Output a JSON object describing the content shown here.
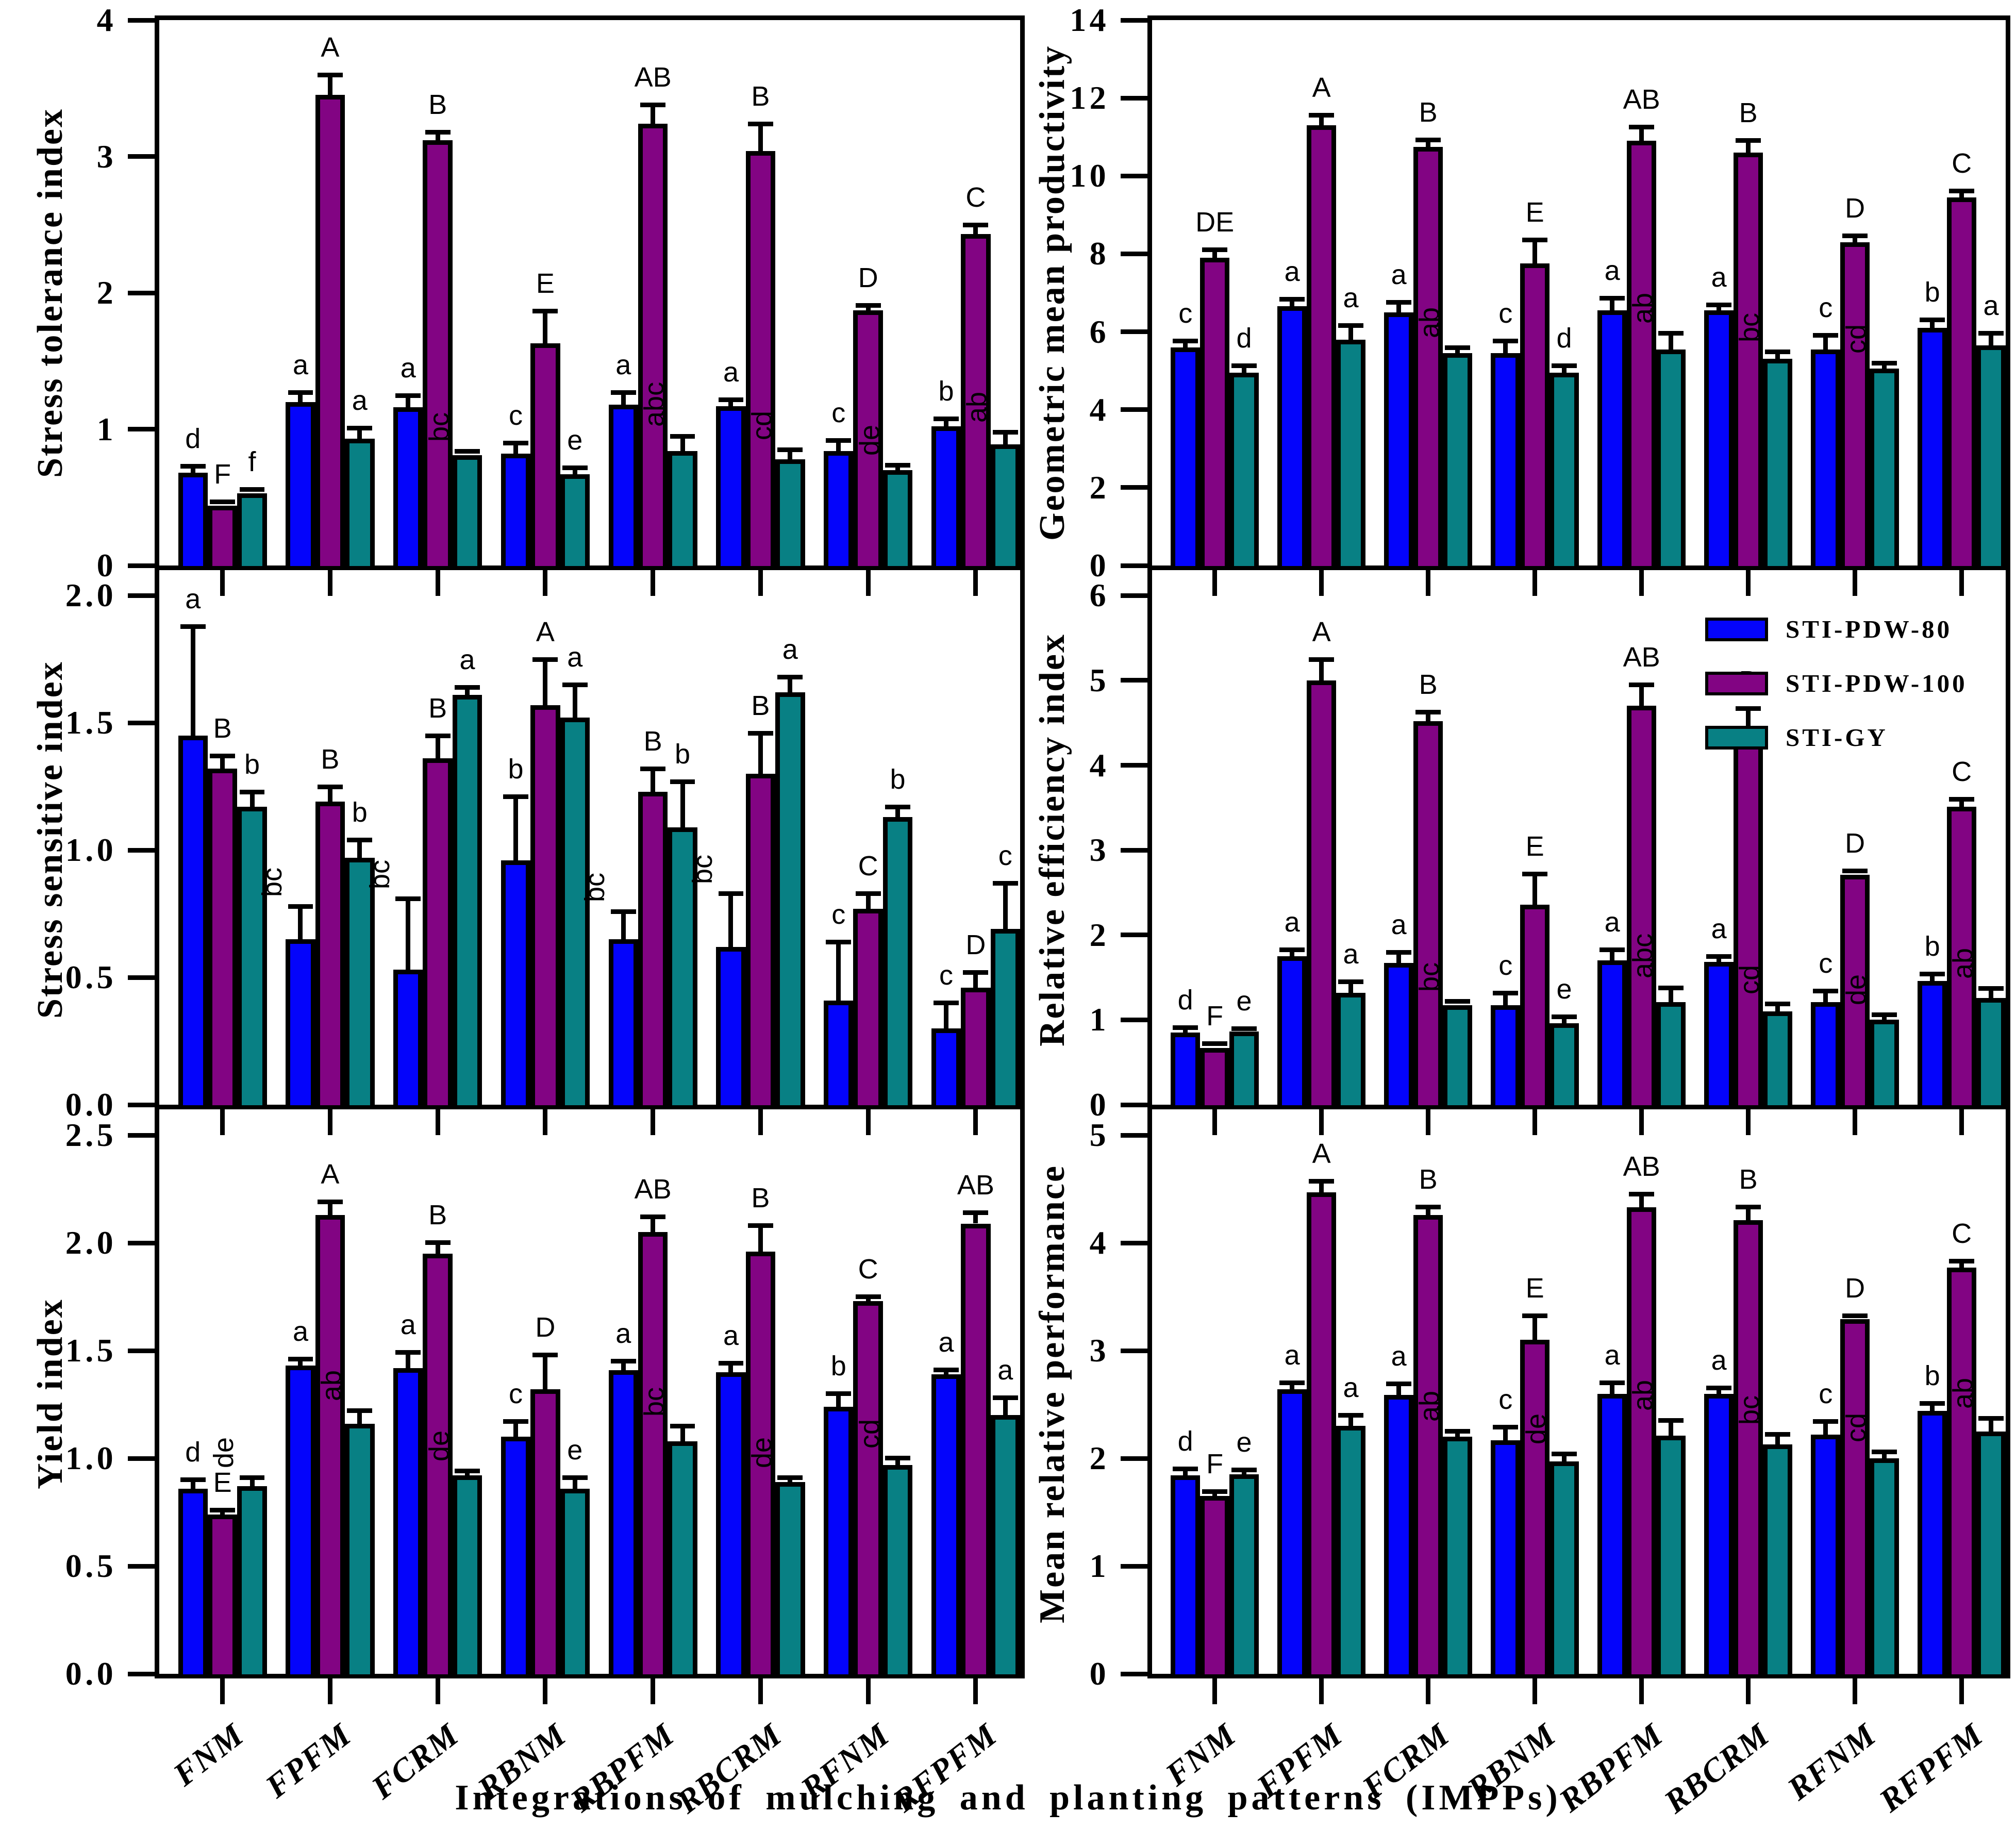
{
  "figure": {
    "x_title": "Integrations of mulching and planting patterns (IMPPs)",
    "categories": [
      "FNM",
      "FPFM",
      "FCRM",
      "RBNM",
      "RBPFM",
      "RBCRM",
      "RFNM",
      "RFPFM"
    ],
    "legend": [
      {
        "label": "STI-PDW-80",
        "color": "#0404fb"
      },
      {
        "label": "STI-PDW-100",
        "color": "#820483"
      },
      {
        "label": "STI-GY",
        "color": "#088084"
      }
    ],
    "colors": {
      "background": "#ffffff",
      "axis": "#000000",
      "letters": "#000000"
    }
  },
  "chart_data": [
    {
      "type": "bar",
      "row": 0,
      "col": 0,
      "ylabel": "Stress tolerance index",
      "ylim": [
        0,
        4
      ],
      "ytick_step": 1,
      "ytick_decimals": 0,
      "frame_max": 4.0,
      "grid": false,
      "series": [
        {
          "name": "STI-PDW-80",
          "values": [
            0.68,
            1.2,
            1.16,
            0.82,
            1.18,
            1.17,
            0.84,
            1.02
          ],
          "errors": [
            0.03,
            0.05,
            0.07,
            0.06,
            0.07,
            0.03,
            0.06,
            0.04
          ],
          "letters": [
            "d",
            "a",
            "a",
            "c",
            "a",
            "a",
            "c",
            "b"
          ]
        },
        {
          "name": "STI-PDW-100",
          "values": [
            0.44,
            3.45,
            3.12,
            1.63,
            3.24,
            3.04,
            1.87,
            2.43
          ],
          "errors": [
            0.01,
            0.13,
            0.04,
            0.22,
            0.12,
            0.18,
            0.02,
            0.05
          ],
          "letters": [
            "F",
            "A",
            "B",
            "E",
            "AB",
            "B",
            "D",
            "C"
          ]
        },
        {
          "name": "STI-GY",
          "values": [
            0.53,
            0.93,
            0.81,
            0.67,
            0.84,
            0.78,
            0.7,
            0.89
          ],
          "errors": [
            0.01,
            0.06,
            0.01,
            0.03,
            0.09,
            0.05,
            0.02,
            0.07
          ],
          "letters": [
            "f",
            "a",
            "bc",
            "e",
            "abc",
            "cd",
            "de",
            "ab"
          ]
        }
      ]
    },
    {
      "type": "bar",
      "row": 0,
      "col": 1,
      "ylabel": "Geometric mean productivity",
      "ylim": [
        0,
        14
      ],
      "ytick_step": 2,
      "ytick_decimals": 0,
      "frame_max": 14.0,
      "grid": false,
      "series": [
        {
          "name": "STI-PDW-80",
          "values": [
            5.6,
            6.65,
            6.5,
            5.45,
            6.55,
            6.55,
            5.55,
            6.1
          ],
          "errors": [
            0.1,
            0.12,
            0.2,
            0.25,
            0.25,
            0.08,
            0.3,
            0.15
          ],
          "letters": [
            "c",
            "a",
            "a",
            "c",
            "a",
            "a",
            "c",
            "b"
          ]
        },
        {
          "name": "STI-PDW-100",
          "values": [
            7.9,
            11.3,
            10.75,
            7.75,
            10.9,
            10.6,
            8.3,
            9.45
          ],
          "errors": [
            0.15,
            0.2,
            0.12,
            0.55,
            0.3,
            0.25,
            0.1,
            0.1
          ],
          "letters": [
            "DE",
            "A",
            "B",
            "E",
            "AB",
            "B",
            "D",
            "C"
          ]
        },
        {
          "name": "STI-GY",
          "values": [
            4.95,
            5.8,
            5.45,
            4.95,
            5.55,
            5.3,
            5.05,
            5.65
          ],
          "errors": [
            0.12,
            0.3,
            0.08,
            0.12,
            0.35,
            0.12,
            0.08,
            0.25
          ],
          "letters": [
            "d",
            "a",
            "ab",
            "d",
            "ab",
            "bc",
            "cd",
            "a"
          ]
        }
      ]
    },
    {
      "type": "bar",
      "row": 1,
      "col": 0,
      "ylabel": "Stress sensitive index",
      "ylim": [
        0,
        2.0
      ],
      "ytick_step": 0.5,
      "ytick_decimals": 1,
      "frame_max": 2.1,
      "grid": false,
      "series": [
        {
          "name": "STI-PDW-80",
          "values": [
            1.45,
            0.65,
            0.53,
            0.96,
            0.65,
            0.62,
            0.41,
            0.3
          ],
          "errors": [
            0.42,
            0.12,
            0.27,
            0.24,
            0.1,
            0.2,
            0.22,
            0.09
          ],
          "letters": [
            "a",
            "bc",
            "bc",
            "b",
            "bc",
            "bc",
            "c",
            "c"
          ]
        },
        {
          "name": "STI-PDW-100",
          "values": [
            1.32,
            1.19,
            1.36,
            1.57,
            1.23,
            1.3,
            0.77,
            0.46
          ],
          "errors": [
            0.04,
            0.05,
            0.08,
            0.17,
            0.08,
            0.15,
            0.05,
            0.05
          ],
          "letters": [
            "B",
            "B",
            "B",
            "A",
            "B",
            "B",
            "C",
            "D"
          ]
        },
        {
          "name": "STI-GY",
          "values": [
            1.17,
            0.97,
            1.61,
            1.52,
            1.09,
            1.62,
            1.13,
            0.69
          ],
          "errors": [
            0.05,
            0.06,
            0.02,
            0.12,
            0.17,
            0.05,
            0.03,
            0.17
          ],
          "letters": [
            "b",
            "b",
            "a",
            "a",
            "b",
            "a",
            "b",
            "c"
          ]
        }
      ]
    },
    {
      "type": "bar",
      "row": 1,
      "col": 1,
      "ylabel": "Relative efficiency index",
      "ylim": [
        0,
        6
      ],
      "ytick_step": 1,
      "ytick_decimals": 0,
      "frame_max": 6.3,
      "grid": false,
      "series": [
        {
          "name": "STI-PDW-80",
          "values": [
            0.85,
            1.75,
            1.67,
            1.17,
            1.7,
            1.68,
            1.21,
            1.46
          ],
          "errors": [
            0.03,
            0.05,
            0.1,
            0.12,
            0.1,
            0.04,
            0.1,
            0.05
          ],
          "letters": [
            "d",
            "a",
            "a",
            "c",
            "a",
            "a",
            "c",
            "b"
          ]
        },
        {
          "name": "STI-PDW-100",
          "values": [
            0.67,
            5.0,
            4.52,
            2.36,
            4.7,
            4.42,
            2.71,
            3.51
          ],
          "errors": [
            0.02,
            0.22,
            0.08,
            0.33,
            0.22,
            0.22,
            0.02,
            0.06
          ],
          "letters": [
            "F",
            "A",
            "B",
            "E",
            "AB",
            "B",
            "D",
            "C"
          ]
        },
        {
          "name": "STI-GY",
          "values": [
            0.86,
            1.32,
            1.17,
            0.96,
            1.21,
            1.1,
            1.0,
            1.26
          ],
          "errors": [
            0.01,
            0.1,
            0.02,
            0.05,
            0.14,
            0.06,
            0.03,
            0.08
          ],
          "letters": [
            "e",
            "a",
            "bc",
            "e",
            "abc",
            "cd",
            "de",
            "ab"
          ]
        }
      ]
    },
    {
      "type": "bar",
      "row": 2,
      "col": 0,
      "ylabel": "Yield index",
      "ylim": [
        0,
        2.5
      ],
      "ytick_step": 0.5,
      "ytick_decimals": 1,
      "frame_max": 2.62,
      "grid": false,
      "series": [
        {
          "name": "STI-PDW-80",
          "values": [
            0.86,
            1.43,
            1.42,
            1.1,
            1.41,
            1.4,
            1.24,
            1.39
          ],
          "errors": [
            0.03,
            0.02,
            0.06,
            0.06,
            0.03,
            0.03,
            0.05,
            0.01
          ],
          "letters": [
            "d",
            "a",
            "a",
            "c",
            "a",
            "a",
            "b",
            "a"
          ]
        },
        {
          "name": "STI-PDW-100",
          "values": [
            0.74,
            2.13,
            1.95,
            1.32,
            2.05,
            1.96,
            1.73,
            2.09
          ],
          "errors": [
            0.01,
            0.05,
            0.04,
            0.15,
            0.06,
            0.11,
            0.01,
            0.04
          ],
          "letters": [
            "E",
            "A",
            "B",
            "D",
            "AB",
            "B",
            "C",
            "AB"
          ]
        },
        {
          "name": "STI-GY",
          "values": [
            0.87,
            1.16,
            0.92,
            0.86,
            1.08,
            0.89,
            0.97,
            1.2
          ],
          "errors": [
            0.03,
            0.05,
            0.01,
            0.04,
            0.06,
            0.01,
            0.02,
            0.07
          ],
          "letters": [
            "de",
            "ab",
            "de",
            "e",
            "bc",
            "de",
            "cd",
            "a"
          ]
        }
      ]
    },
    {
      "type": "bar",
      "row": 2,
      "col": 1,
      "ylabel": "Mean relative performance",
      "ylim": [
        0,
        5
      ],
      "ytick_step": 1,
      "ytick_decimals": 0,
      "frame_max": 5.24,
      "grid": false,
      "series": [
        {
          "name": "STI-PDW-80",
          "values": [
            1.84,
            2.64,
            2.59,
            2.17,
            2.6,
            2.6,
            2.22,
            2.44
          ],
          "errors": [
            0.04,
            0.04,
            0.08,
            0.1,
            0.08,
            0.03,
            0.1,
            0.05
          ],
          "letters": [
            "d",
            "a",
            "a",
            "c",
            "a",
            "a",
            "c",
            "b"
          ]
        },
        {
          "name": "STI-PDW-100",
          "values": [
            1.65,
            4.47,
            4.26,
            3.1,
            4.33,
            4.21,
            3.29,
            3.77
          ],
          "errors": [
            0.02,
            0.08,
            0.05,
            0.2,
            0.1,
            0.1,
            0.01,
            0.04
          ],
          "letters": [
            "F",
            "A",
            "B",
            "E",
            "AB",
            "B",
            "D",
            "C"
          ]
        },
        {
          "name": "STI-GY",
          "values": [
            1.85,
            2.3,
            2.2,
            1.97,
            2.21,
            2.13,
            2.0,
            2.25
          ],
          "errors": [
            0.02,
            0.08,
            0.03,
            0.05,
            0.12,
            0.07,
            0.04,
            0.1
          ],
          "letters": [
            "e",
            "a",
            "ab",
            "de",
            "ab",
            "bc",
            "cd",
            "ab"
          ]
        }
      ]
    }
  ]
}
